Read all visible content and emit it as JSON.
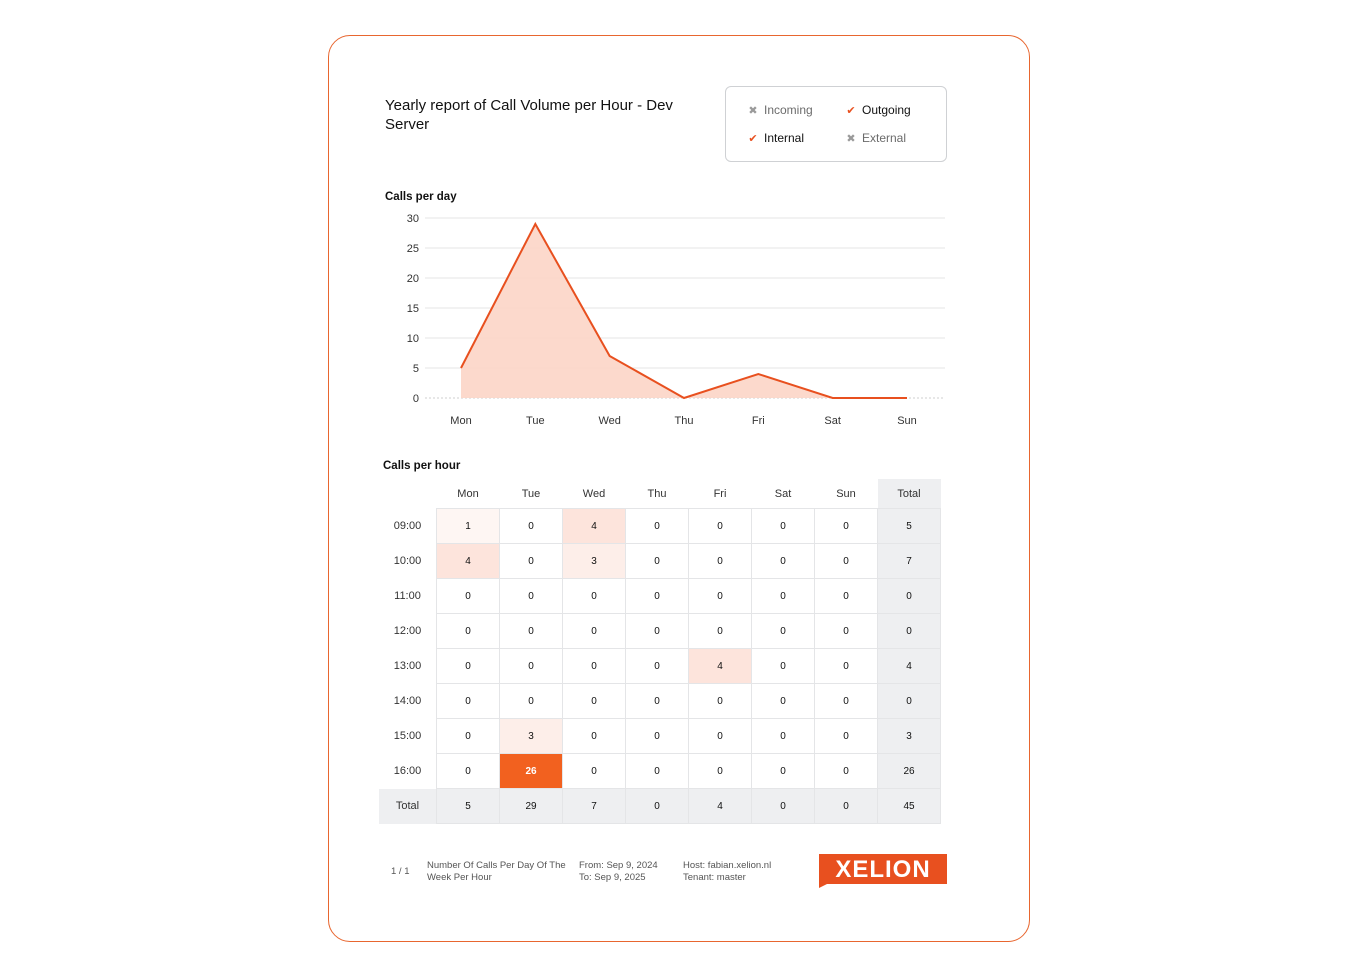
{
  "report": {
    "title": "Yearly report of Call Volume per Hour - Dev Server"
  },
  "legend": [
    {
      "label": "Incoming",
      "checked": false
    },
    {
      "label": "Outgoing",
      "checked": true
    },
    {
      "label": "Internal",
      "checked": true
    },
    {
      "label": "External",
      "checked": false
    }
  ],
  "calls_per_day": {
    "label": "Calls per day"
  },
  "calls_per_hour": {
    "label": "Calls per hour",
    "columns": [
      "Mon",
      "Tue",
      "Wed",
      "Thu",
      "Fri",
      "Sat",
      "Sun",
      "Total"
    ],
    "rows": [
      {
        "label": "09:00",
        "values": [
          1,
          0,
          4,
          0,
          0,
          0,
          0,
          5
        ]
      },
      {
        "label": "10:00",
        "values": [
          4,
          0,
          3,
          0,
          0,
          0,
          0,
          7
        ]
      },
      {
        "label": "11:00",
        "values": [
          0,
          0,
          0,
          0,
          0,
          0,
          0,
          0
        ]
      },
      {
        "label": "12:00",
        "values": [
          0,
          0,
          0,
          0,
          0,
          0,
          0,
          0
        ]
      },
      {
        "label": "13:00",
        "values": [
          0,
          0,
          0,
          0,
          4,
          0,
          0,
          4
        ]
      },
      {
        "label": "14:00",
        "values": [
          0,
          0,
          0,
          0,
          0,
          0,
          0,
          0
        ]
      },
      {
        "label": "15:00",
        "values": [
          0,
          3,
          0,
          0,
          0,
          0,
          0,
          3
        ]
      },
      {
        "label": "16:00",
        "values": [
          0,
          26,
          0,
          0,
          0,
          0,
          0,
          26
        ]
      }
    ],
    "total_row": {
      "label": "Total",
      "values": [
        5,
        29,
        7,
        0,
        4,
        0,
        0,
        45
      ]
    }
  },
  "footer": {
    "page": "1 / 1",
    "report_name": "Number Of Calls Per Day Of The Week Per Hour",
    "from": "From: Sep 9, 2024",
    "to": "To: Sep 9, 2025",
    "host": "Host: fabian.xelion.nl",
    "tenant": "Tenant: master",
    "logo_text": "XELION"
  },
  "colors": {
    "accent": "#e8501f",
    "area_fill": "#fcd5c6",
    "heat_max": "#f2611f"
  },
  "chart_data": {
    "type": "area",
    "title": "Calls per day",
    "categories": [
      "Mon",
      "Tue",
      "Wed",
      "Thu",
      "Fri",
      "Sat",
      "Sun"
    ],
    "values": [
      5,
      29,
      7,
      0,
      4,
      0,
      0
    ],
    "yticks": [
      0,
      5,
      10,
      15,
      20,
      25,
      30
    ],
    "ylim": [
      0,
      30
    ],
    "grid": true,
    "xlabel": "",
    "ylabel": ""
  }
}
